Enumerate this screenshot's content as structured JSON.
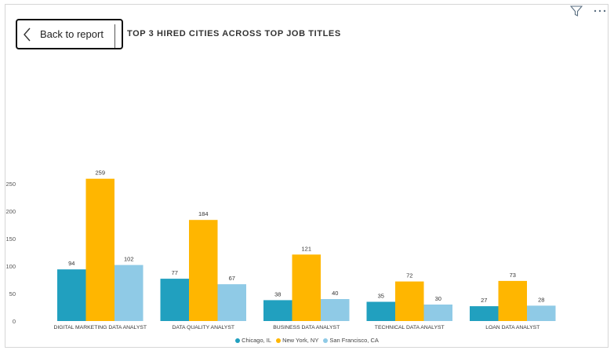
{
  "header": {
    "back_label": "Back to report",
    "title": "TOP 3 HIRED CITIES ACROSS TOP JOB TITLES",
    "icons": [
      "chevron-left-icon",
      "filter-icon",
      "more-options-icon"
    ]
  },
  "chart_data": {
    "type": "bar",
    "title": "TOP 3 HIRED CITIES ACROSS TOP JOB TITLES",
    "categories": [
      "DIGITAL MARKETING DATA ANALYST",
      "DATA QUALITY ANALYST",
      "BUSINESS DATA ANALYST",
      "TECHNICAL DATA ANALYST",
      "LOAN DATA ANALYST"
    ],
    "series": [
      {
        "name": "Chicago, IL",
        "color": "#21a0bf",
        "values": [
          94,
          77,
          38,
          35,
          27
        ]
      },
      {
        "name": "New York, NY",
        "color": "#ffb600",
        "values": [
          259,
          184,
          121,
          72,
          73
        ]
      },
      {
        "name": "San Francisco, CA",
        "color": "#8fcae6",
        "values": [
          102,
          67,
          40,
          30,
          28
        ]
      }
    ],
    "yticks": [
      0,
      50,
      100,
      150,
      200,
      250
    ],
    "ylim": [
      0,
      270
    ],
    "xlabel": "",
    "ylabel": "",
    "legend_position": "bottom-center",
    "grid": false
  }
}
